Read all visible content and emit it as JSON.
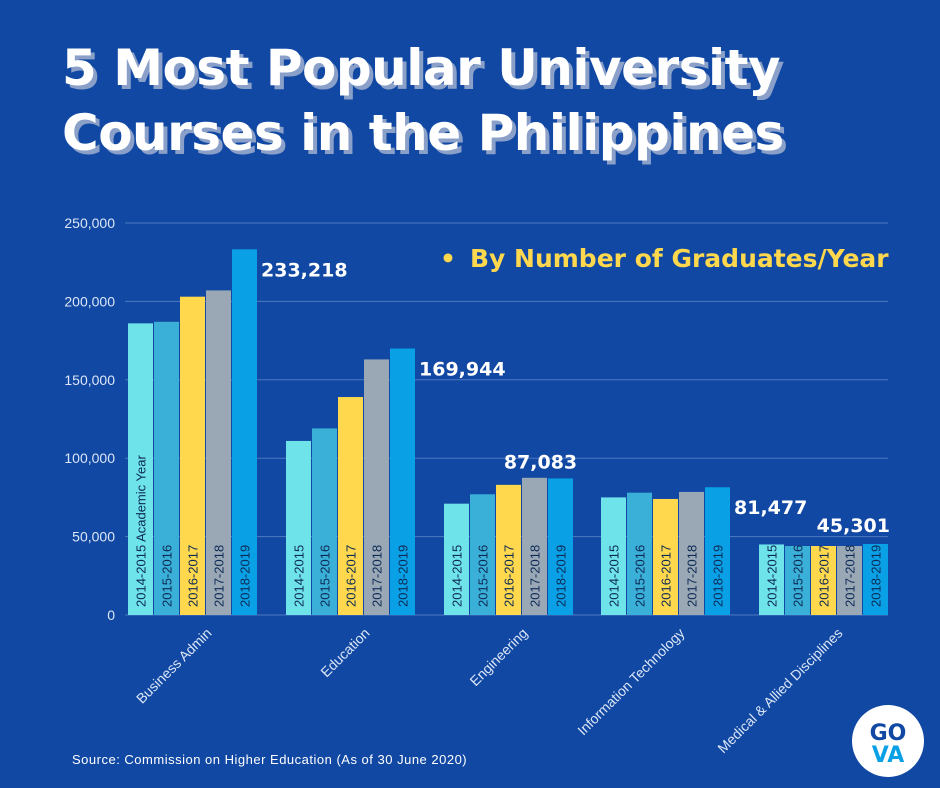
{
  "title_line1": "5 Most Popular University",
  "title_line2": "Courses in the Philippines",
  "subtitle": "By Number of Graduates/Year",
  "bullet": "•",
  "source": "Source: Commission on Higher Education (As of 30 June 2020)",
  "logo_text_top": "GO",
  "logo_text_bottom": "VA",
  "colors": {
    "background": "#1148a3",
    "series": [
      "#6fe3ea",
      "#3ab0d8",
      "#ffd84d",
      "#9aa8b6",
      "#0aa0e6"
    ],
    "subtitle": "#ffd84d"
  },
  "chart_data": {
    "type": "bar",
    "title": "5 Most Popular University Courses in the Philippines",
    "subtitle": "By Number of Graduates/Year",
    "categories": [
      "Business Admin",
      "Education",
      "Engineering",
      "Information Technology",
      "Medical & Allied Disciplines"
    ],
    "series": [
      {
        "name": "2014-2015",
        "values": [
          186000,
          111000,
          71000,
          75000,
          45000
        ]
      },
      {
        "name": "2015-2016",
        "values": [
          187000,
          119000,
          77000,
          78000,
          44000
        ]
      },
      {
        "name": "2016-2017",
        "values": [
          203000,
          139000,
          83000,
          74000,
          44000
        ]
      },
      {
        "name": "2017-2018",
        "values": [
          207000,
          163000,
          87500,
          78500,
          44000
        ]
      },
      {
        "name": "2018-2019",
        "values": [
          233218,
          169944,
          87083,
          81477,
          45301
        ]
      }
    ],
    "bar_labels": [
      "2014-2015",
      "2015-2016",
      "2016-2017",
      "2017-2018",
      "2018-2019"
    ],
    "first_bar_label": "2014-2015 Academic Year",
    "value_labels": [
      "233,218",
      "169,944",
      "87,083",
      "81,477",
      "45,301"
    ],
    "yticks": [
      "0",
      "50,000",
      "100,000",
      "150,000",
      "200,000",
      "250,000"
    ],
    "ytick_values": [
      0,
      50000,
      100000,
      150000,
      200000,
      250000
    ],
    "ylim": [
      0,
      250000
    ],
    "grid": true,
    "legend": "none"
  }
}
